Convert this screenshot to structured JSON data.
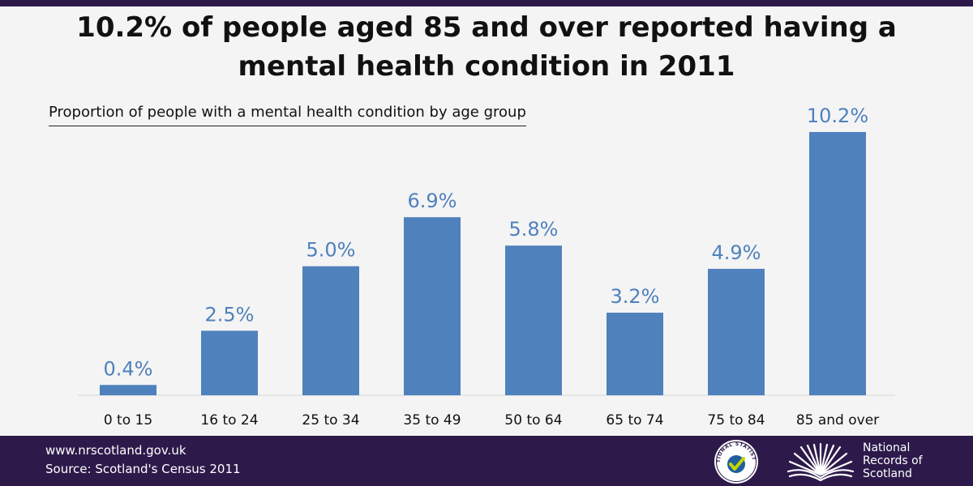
{
  "colors": {
    "brand_purple": "#2d1a4b",
    "bar": "#4f81bd",
    "label": "#4f81bd",
    "background": "#f4f4f4"
  },
  "chart_data": {
    "type": "bar",
    "title": "10.2% of people aged 85 and over reported having a mental health condition in 2011",
    "subtitle": "Proportion of people with a mental health condition by age group",
    "categories": [
      "0 to 15",
      "16 to 24",
      "25 to 34",
      "35 to 49",
      "50 to 64",
      "65 to 74",
      "75 to 84",
      "85 and over"
    ],
    "values": [
      0.4,
      2.5,
      5.0,
      6.9,
      5.8,
      3.2,
      4.9,
      10.2
    ],
    "data_labels": [
      "0.4%",
      "2.5%",
      "5.0%",
      "6.9%",
      "5.8%",
      "3.2%",
      "4.9%",
      "10.2%"
    ],
    "ylim": [
      0,
      10.2
    ],
    "grid": false,
    "legend": false,
    "y_axis_visible": false
  },
  "footer": {
    "url": "www.nrscotland.gov.uk",
    "source": "Source: Scotland's Census 2011"
  },
  "logos": {
    "national_statistics_text": "NATIONAL STATISTICS",
    "nrs_line1": "National",
    "nrs_line2": "Records of",
    "nrs_line3": "Scotland"
  },
  "icons": {
    "national_statistics": "national-statistics-logo-icon",
    "nrs": "nrs-book-logo-icon"
  }
}
